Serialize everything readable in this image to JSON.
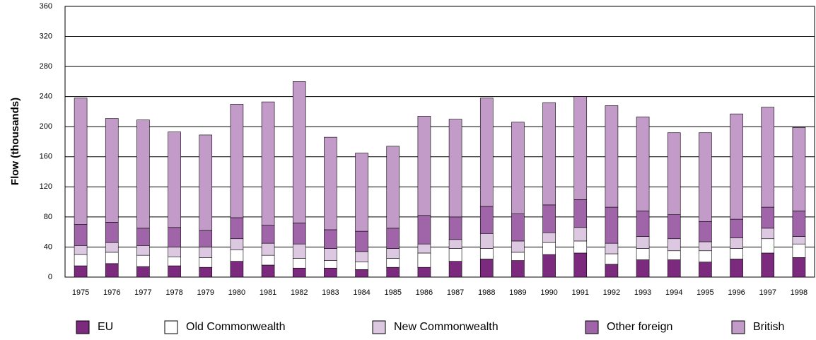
{
  "chart_data": {
    "type": "stacked_bar",
    "ylabel": "Flow (thousands)",
    "categories": [
      "1975",
      "1976",
      "1977",
      "1978",
      "1979",
      "1980",
      "1981",
      "1982",
      "1983",
      "1984",
      "1985",
      "1986",
      "1987",
      "1988",
      "1989",
      "1990",
      "1991",
      "1992",
      "1993",
      "1994",
      "1995",
      "1996",
      "1997",
      "1998"
    ],
    "series": [
      {
        "name": "EU",
        "color": "#7b2a7e",
        "values": [
          15,
          18,
          14,
          15,
          13,
          21,
          16,
          12,
          12,
          10,
          13,
          13,
          21,
          24,
          22,
          30,
          32,
          17,
          23,
          23,
          20,
          24,
          32,
          26
        ]
      },
      {
        "name": "Old Commonwealth",
        "color": "#ffffff",
        "values": [
          15,
          15,
          15,
          12,
          13,
          15,
          13,
          13,
          10,
          10,
          12,
          19,
          17,
          14,
          11,
          16,
          16,
          14,
          15,
          12,
          15,
          14,
          19,
          18
        ]
      },
      {
        "name": "New Commonwealth",
        "color": "#dcc8e0",
        "values": [
          12,
          13,
          13,
          13,
          14,
          15,
          16,
          19,
          16,
          14,
          13,
          12,
          12,
          20,
          15,
          13,
          18,
          14,
          16,
          16,
          12,
          14,
          14,
          10
        ]
      },
      {
        "name": "Other foreign",
        "color": "#a064a8",
        "values": [
          28,
          27,
          23,
          26,
          22,
          28,
          24,
          28,
          25,
          27,
          27,
          38,
          30,
          36,
          36,
          37,
          37,
          48,
          34,
          32,
          27,
          25,
          28,
          34
        ]
      },
      {
        "name": "British",
        "color": "#c39bc8",
        "values": [
          168,
          138,
          144,
          127,
          127,
          151,
          164,
          188,
          123,
          104,
          109,
          132,
          130,
          144,
          122,
          136,
          137,
          135,
          125,
          109,
          118,
          140,
          133,
          111
        ]
      }
    ],
    "ylim": [
      0,
      360
    ],
    "yticks": [
      0,
      40,
      80,
      120,
      160,
      200,
      240,
      280,
      320,
      360
    ],
    "grid": true
  }
}
